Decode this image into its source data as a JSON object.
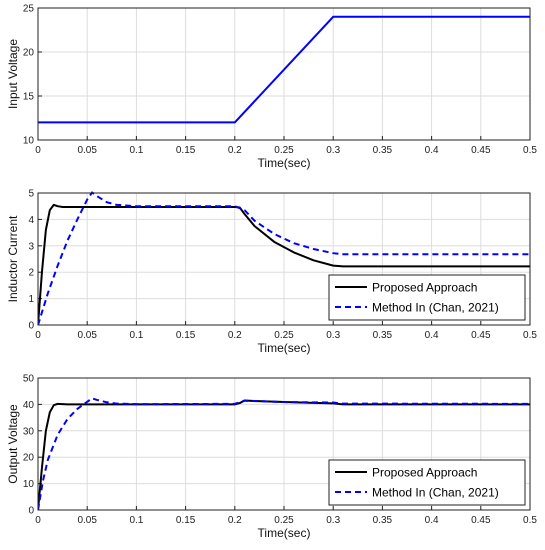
{
  "chart_data": [
    {
      "type": "line",
      "xlabel": "Time(sec)",
      "ylabel": "Input Voltage",
      "xlim": [
        0,
        0.5
      ],
      "ylim": [
        10,
        25
      ],
      "xticks": [
        "0",
        "0.05",
        "0.1",
        "0.15",
        "0.2",
        "0.25",
        "0.3",
        "0.35",
        "0.4",
        "0.45",
        "0.5"
      ],
      "yticks": [
        "10",
        "15",
        "20",
        "25"
      ],
      "grid": true,
      "legend": null,
      "series": [
        {
          "color": "#0000ff",
          "dash": "solid",
          "points": [
            [
              0,
              12
            ],
            [
              0.2,
              12
            ],
            [
              0.3,
              24
            ],
            [
              0.5,
              24
            ]
          ]
        }
      ]
    },
    {
      "type": "line",
      "xlabel": "Time(sec)",
      "ylabel": "Inductor Current",
      "xlim": [
        0,
        0.5
      ],
      "ylim": [
        0,
        5
      ],
      "xticks": [
        "0",
        "0.05",
        "0.1",
        "0.15",
        "0.2",
        "0.25",
        "0.3",
        "0.35",
        "0.4",
        "0.45",
        "0.5"
      ],
      "yticks": [
        "0",
        "1",
        "2",
        "3",
        "4",
        "5"
      ],
      "grid": true,
      "legend": "bottom-right",
      "series": [
        {
          "name": "Proposed Approach",
          "color": "#000000",
          "dash": "solid",
          "points": [
            [
              0,
              0
            ],
            [
              0.004,
              2.0
            ],
            [
              0.008,
              3.6
            ],
            [
              0.012,
              4.35
            ],
            [
              0.016,
              4.55
            ],
            [
              0.02,
              4.5
            ],
            [
              0.025,
              4.47
            ],
            [
              0.1,
              4.47
            ],
            [
              0.2,
              4.47
            ],
            [
              0.205,
              4.45
            ],
            [
              0.21,
              4.2
            ],
            [
              0.22,
              3.75
            ],
            [
              0.24,
              3.15
            ],
            [
              0.26,
              2.75
            ],
            [
              0.28,
              2.45
            ],
            [
              0.3,
              2.25
            ],
            [
              0.31,
              2.22
            ],
            [
              0.5,
              2.22
            ]
          ]
        },
        {
          "name": "Method In (Chan, 2021)",
          "color": "#0000ff",
          "dash": "dashed",
          "points": [
            [
              0,
              0
            ],
            [
              0.01,
              1.2
            ],
            [
              0.02,
              2.25
            ],
            [
              0.03,
              3.2
            ],
            [
              0.04,
              4.0
            ],
            [
              0.05,
              4.75
            ],
            [
              0.055,
              5.02
            ],
            [
              0.06,
              4.88
            ],
            [
              0.07,
              4.65
            ],
            [
              0.08,
              4.55
            ],
            [
              0.1,
              4.5
            ],
            [
              0.2,
              4.5
            ],
            [
              0.21,
              4.35
            ],
            [
              0.22,
              3.95
            ],
            [
              0.24,
              3.45
            ],
            [
              0.26,
              3.1
            ],
            [
              0.28,
              2.88
            ],
            [
              0.3,
              2.72
            ],
            [
              0.31,
              2.68
            ],
            [
              0.5,
              2.68
            ]
          ]
        }
      ]
    },
    {
      "type": "line",
      "xlabel": "Time(sec)",
      "ylabel": "Output Voltage",
      "xlim": [
        0,
        0.5
      ],
      "ylim": [
        0,
        50
      ],
      "xticks": [
        "0",
        "0.05",
        "0.1",
        "0.15",
        "0.2",
        "0.25",
        "0.3",
        "0.35",
        "0.4",
        "0.45",
        "0.5"
      ],
      "yticks": [
        "0",
        "10",
        "20",
        "30",
        "40",
        "50"
      ],
      "grid": true,
      "legend": "bottom-right",
      "series": [
        {
          "name": "Proposed Approach",
          "color": "#000000",
          "dash": "solid",
          "points": [
            [
              0,
              0
            ],
            [
              0.004,
              16
            ],
            [
              0.008,
              30
            ],
            [
              0.012,
              37
            ],
            [
              0.016,
              39.7
            ],
            [
              0.02,
              40.2
            ],
            [
              0.03,
              40.0
            ],
            [
              0.2,
              40.0
            ],
            [
              0.205,
              40.5
            ],
            [
              0.21,
              41.5
            ],
            [
              0.22,
              41.3
            ],
            [
              0.25,
              40.9
            ],
            [
              0.28,
              40.6
            ],
            [
              0.3,
              40.4
            ],
            [
              0.31,
              40.0
            ],
            [
              0.5,
              40.0
            ]
          ]
        },
        {
          "name": "Method In (Chan, 2021)",
          "color": "#0000ff",
          "dash": "dashed",
          "points": [
            [
              0,
              0
            ],
            [
              0.005,
              11
            ],
            [
              0.01,
              19
            ],
            [
              0.02,
              28.5
            ],
            [
              0.03,
              34.5
            ],
            [
              0.04,
              38.3
            ],
            [
              0.05,
              41.0
            ],
            [
              0.055,
              42.3
            ],
            [
              0.06,
              41.7
            ],
            [
              0.07,
              40.8
            ],
            [
              0.08,
              40.3
            ],
            [
              0.1,
              40.1
            ],
            [
              0.2,
              40.2
            ],
            [
              0.21,
              41.4
            ],
            [
              0.25,
              40.9
            ],
            [
              0.3,
              40.7
            ],
            [
              0.31,
              40.3
            ],
            [
              0.5,
              40.2
            ]
          ]
        }
      ]
    }
  ]
}
